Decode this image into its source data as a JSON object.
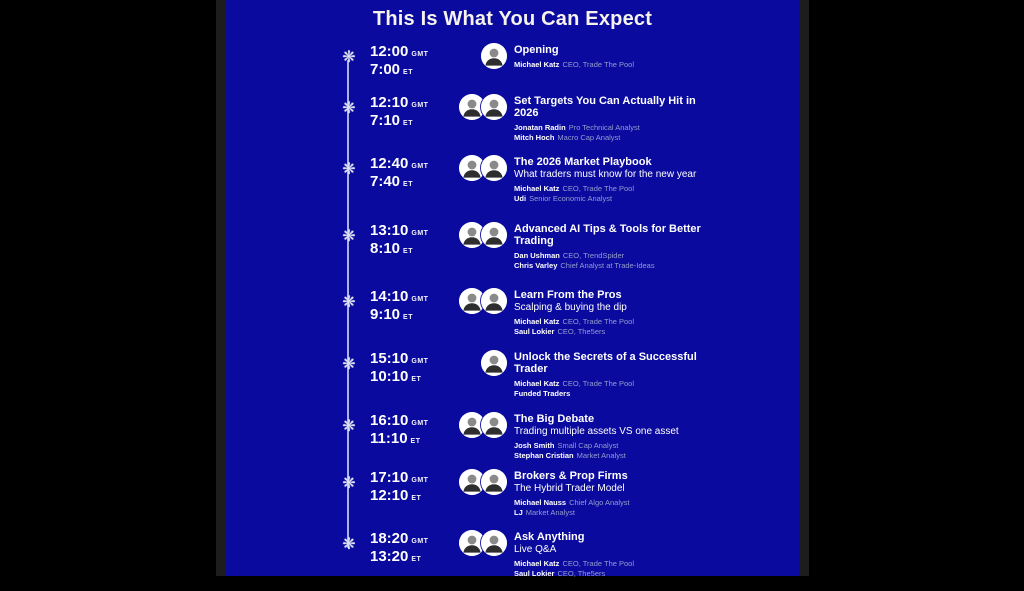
{
  "colors": {
    "panel_background": "#0a0a9e",
    "edge_strip": "#1d1d1d",
    "title_text": "#f6f3ed",
    "role_text": "#939dce",
    "timeline_line": "#dfe3f2"
  },
  "header": {
    "title": "This Is What You Can Expect"
  },
  "timeline": {
    "icon": "snowflake-icon",
    "glyph": "❋"
  },
  "labels": {
    "gmt": "GMT",
    "et": "ET"
  },
  "sessions": [
    {
      "gmt": "12:00",
      "et": "7:00",
      "title": "Opening",
      "subtitle": "",
      "avatars": 1,
      "speakers": [
        {
          "name": "Michael Katz",
          "role": "CEO, Trade The Pool"
        }
      ]
    },
    {
      "gmt": "12:10",
      "et": "7:10",
      "title": "Set Targets You Can Actually Hit in 2026",
      "subtitle": "",
      "avatars": 2,
      "speakers": [
        {
          "name": "Jonatan Radin",
          "role": "Pro Technical Analyst"
        },
        {
          "name": "Mitch Hoch",
          "role": "Macro Cap Analyst"
        }
      ]
    },
    {
      "gmt": "12:40",
      "et": "7:40",
      "title": "The 2026 Market Playbook",
      "subtitle": "What traders must know for the new year",
      "avatars": 2,
      "speakers": [
        {
          "name": "Michael Katz",
          "role": "CEO, Trade The Pool"
        },
        {
          "name": "Udi",
          "role": "Senior Economic Analyst"
        }
      ]
    },
    {
      "gmt": "13:10",
      "et": "8:10",
      "title": "Advanced AI Tips & Tools for Better Trading",
      "subtitle": "",
      "avatars": 2,
      "speakers": [
        {
          "name": "Dan Ushman",
          "role": "CEO, TrendSpider"
        },
        {
          "name": "Chris Varley",
          "role": "Chief Analyst at Trade-Ideas"
        }
      ]
    },
    {
      "gmt": "14:10",
      "et": "9:10",
      "title": "Learn From the Pros",
      "subtitle": "Scalping & buying the dip",
      "avatars": 2,
      "speakers": [
        {
          "name": "Michael Katz",
          "role": "CEO, Trade The Pool"
        },
        {
          "name": "Saul Lokier",
          "role": "CEO, The5ers"
        }
      ]
    },
    {
      "gmt": "15:10",
      "et": "10:10",
      "title": "Unlock the Secrets of a Successful Trader",
      "subtitle": "",
      "avatars": 1,
      "speakers": [
        {
          "name": "Michael Katz",
          "role": "CEO, Trade The Pool"
        },
        {
          "name": "Funded Traders",
          "role": ""
        }
      ]
    },
    {
      "gmt": "16:10",
      "et": "11:10",
      "title": "The Big Debate",
      "subtitle": "Trading multiple assets VS one asset",
      "avatars": 2,
      "speakers": [
        {
          "name": "Josh Smith",
          "role": "Small Cap Analyst"
        },
        {
          "name": "Stephan Cristian",
          "role": "Market Analyst"
        }
      ]
    },
    {
      "gmt": "17:10",
      "et": "12:10",
      "title": "Brokers & Prop Firms",
      "subtitle": "The Hybrid Trader Model",
      "avatars": 2,
      "speakers": [
        {
          "name": "Michael Nauss",
          "role": "Chief Algo Analyst"
        },
        {
          "name": "LJ",
          "role": "Market Analyst"
        }
      ]
    },
    {
      "gmt": "18:20",
      "et": "13:20",
      "title": "Ask Anything",
      "subtitle": "Live Q&A",
      "avatars": 2,
      "speakers": [
        {
          "name": "Michael Katz",
          "role": "CEO, Trade The Pool"
        },
        {
          "name": "Saul Lokier",
          "role": "CEO, The5ers"
        }
      ]
    }
  ]
}
